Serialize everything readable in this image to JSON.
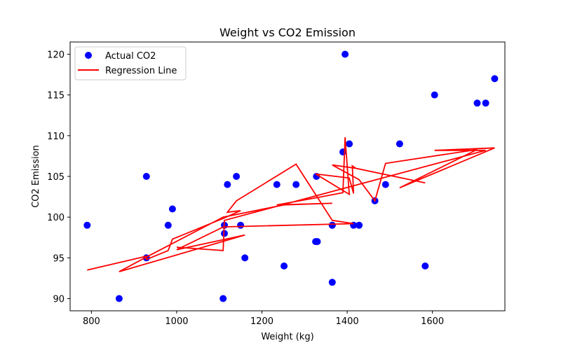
{
  "chart_data": {
    "type": "scatter",
    "title": "Weight vs CO2 Emission",
    "xlabel": "Weight (kg)",
    "ylabel": "CO2 Emission",
    "xlim": [
      750,
      1770
    ],
    "ylim": [
      88.5,
      121.5
    ],
    "x_ticks": [
      800,
      1000,
      1200,
      1400,
      1600
    ],
    "y_ticks": [
      90,
      95,
      100,
      105,
      110,
      115,
      120
    ],
    "grid": false,
    "legend_position": "upper-left",
    "series": [
      {
        "name": "Actual CO2",
        "kind": "scatter",
        "color": "#0000ff",
        "points": [
          [
            790,
            99
          ],
          [
            865,
            90
          ],
          [
            929,
            95
          ],
          [
            929,
            105
          ],
          [
            980,
            99
          ],
          [
            990,
            101
          ],
          [
            1109,
            90
          ],
          [
            1112,
            98
          ],
          [
            1112,
            99
          ],
          [
            1119,
            104
          ],
          [
            1140,
            105
          ],
          [
            1150,
            99
          ],
          [
            1160,
            95
          ],
          [
            1235,
            104
          ],
          [
            1252,
            94
          ],
          [
            1280,
            104
          ],
          [
            1326,
            97
          ],
          [
            1330,
            97
          ],
          [
            1328,
            105
          ],
          [
            1365,
            99
          ],
          [
            1365,
            99
          ],
          [
            1365,
            92
          ],
          [
            1390,
            108
          ],
          [
            1395,
            120
          ],
          [
            1405,
            109
          ],
          [
            1415,
            99
          ],
          [
            1428,
            99
          ],
          [
            1465,
            102
          ],
          [
            1490,
            104
          ],
          [
            1523,
            109
          ],
          [
            1583,
            94
          ],
          [
            1605,
            115
          ],
          [
            1705,
            114
          ],
          [
            1725,
            114
          ],
          [
            1746,
            117
          ]
        ]
      },
      {
        "name": "Regression Line",
        "kind": "line",
        "color": "#ff0000",
        "points": [
          [
            790,
            93.5
          ],
          [
            929,
            95.2
          ],
          [
            929,
            94.8
          ],
          [
            980,
            95.9
          ],
          [
            990,
            97.3
          ],
          [
            1112,
            99.9
          ],
          [
            1150,
            100.8
          ],
          [
            1119,
            100.6
          ],
          [
            1140,
            102.0
          ],
          [
            1280,
            106.5
          ],
          [
            1365,
            99.6
          ],
          [
            1415,
            99.2
          ],
          [
            1110,
            98.8
          ],
          [
            1000,
            96.0
          ],
          [
            1160,
            97.8
          ],
          [
            865,
            93.3
          ],
          [
            929,
            95.1
          ],
          [
            1109,
            100.0
          ],
          [
            1252,
            101.5
          ],
          [
            1365,
            101.7
          ],
          [
            1235,
            101.5
          ],
          [
            1330,
            102.4
          ],
          [
            1390,
            103.0
          ],
          [
            1395,
            109.8
          ],
          [
            1405,
            102.8
          ],
          [
            1326,
            105.3
          ],
          [
            1405,
            104.8
          ],
          [
            1415,
            102.9
          ],
          [
            1412,
            106.3
          ],
          [
            1420,
            106.0
          ],
          [
            1583,
            104.2
          ],
          [
            1420,
            106.0
          ],
          [
            1365,
            106.4
          ],
          [
            1428,
            104.6
          ],
          [
            1465,
            102.0
          ],
          [
            1490,
            106.6
          ],
          [
            1705,
            108.3
          ],
          [
            1523,
            103.6
          ],
          [
            1746,
            108.5
          ],
          [
            1605,
            108.2
          ],
          [
            1725,
            108.2
          ],
          [
            1112,
            99.6
          ],
          [
            1109,
            95.9
          ],
          [
            1000,
            96.3
          ]
        ]
      }
    ]
  }
}
